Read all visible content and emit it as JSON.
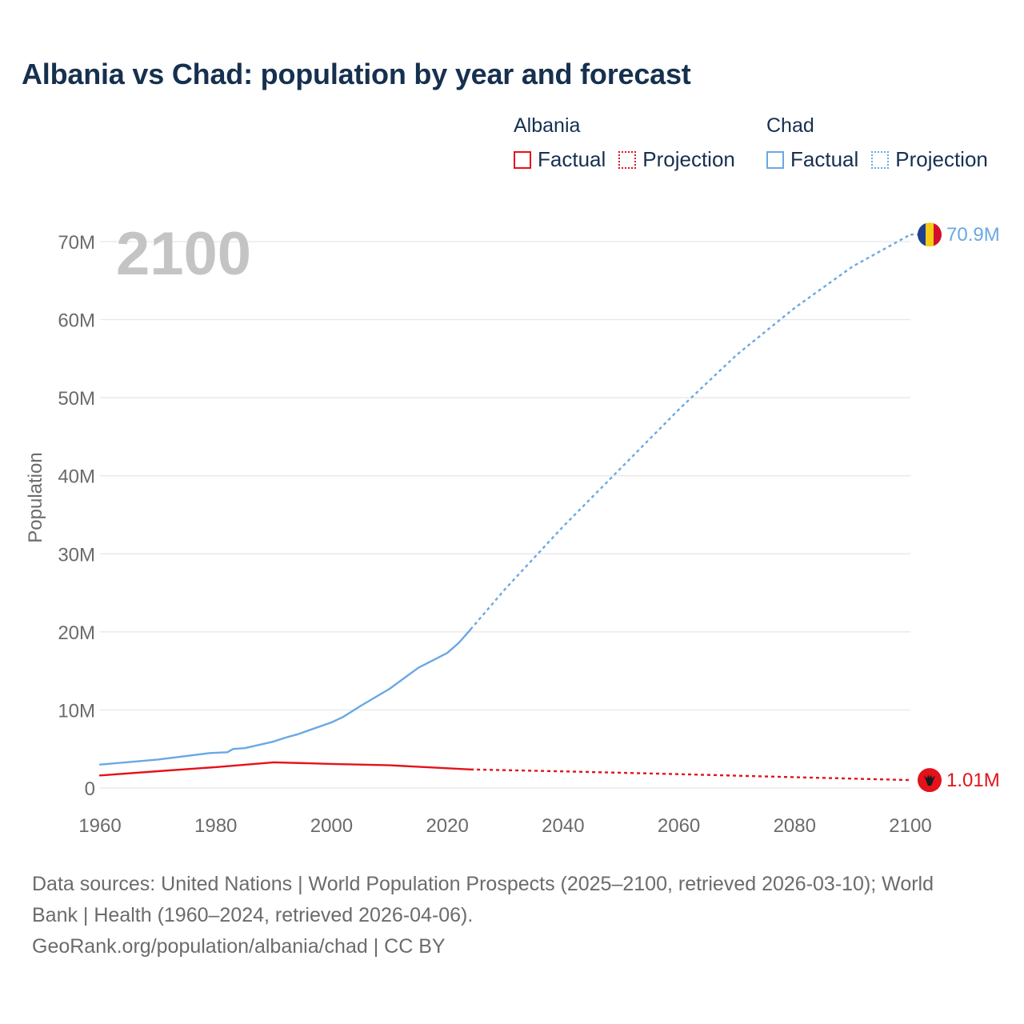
{
  "title": "Albania vs Chad: population by year and forecast",
  "legend": {
    "groups": [
      {
        "name": "Albania",
        "color": "#e3121b",
        "factual": "Factual",
        "projection": "Projection"
      },
      {
        "name": "Chad",
        "color": "#6aa8e3",
        "factual": "Factual",
        "projection": "Projection"
      }
    ]
  },
  "year_overlay": "2100",
  "end_labels": {
    "albania": "1.01M",
    "chad": "70.9M"
  },
  "flag_icons": {
    "albania": "albania-flag-icon",
    "chad": "chad-flag-icon"
  },
  "footer": {
    "line1": "Data sources: United Nations | World Population Prospects (2025–2100, retrieved 2026-03-10); World",
    "line2": "Bank | Health (1960–2024, retrieved 2026-04-06).",
    "line3": "GeoRank.org/population/albania/chad | CC BY"
  },
  "chart_data": {
    "type": "line",
    "title": "Albania vs Chad: population by year and forecast",
    "xlabel": "",
    "ylabel": "Population",
    "xlim": [
      1960,
      2100
    ],
    "ylim": [
      0,
      70000000
    ],
    "x_ticks": [
      1960,
      1980,
      2000,
      2020,
      2040,
      2060,
      2080,
      2100
    ],
    "x_tick_labels": [
      "1960",
      "1980",
      "2000",
      "2020",
      "2040",
      "2060",
      "2080",
      "2100"
    ],
    "y_ticks": [
      0,
      10000000,
      20000000,
      30000000,
      40000000,
      50000000,
      60000000,
      70000000
    ],
    "y_tick_labels": [
      "0",
      "10M",
      "20M",
      "30M",
      "40M",
      "50M",
      "60M",
      "70M"
    ],
    "grid": true,
    "series": [
      {
        "name": "Albania",
        "segment": "Factual",
        "color": "#e3121b",
        "style": "solid",
        "x": [
          1960,
          1970,
          1980,
          1990,
          2000,
          2010,
          2024
        ],
        "values": [
          1610000,
          2150000,
          2670000,
          3290000,
          3090000,
          2910000,
          2380000
        ]
      },
      {
        "name": "Albania",
        "segment": "Projection",
        "color": "#e3121b",
        "style": "dotted",
        "x": [
          2024,
          2040,
          2060,
          2080,
          2100
        ],
        "values": [
          2380000,
          2130000,
          1770000,
          1380000,
          1010000
        ]
      },
      {
        "name": "Chad",
        "segment": "Factual",
        "color": "#6aa8e3",
        "style": "solid",
        "x": [
          1960,
          1970,
          1979,
          1982,
          1983,
          1985,
          1990,
          1992,
          1994,
          2000,
          2002,
          2005,
          2010,
          2015,
          2020,
          2022,
          2024
        ],
        "values": [
          3000000,
          3650000,
          4480000,
          4580000,
          5000000,
          5100000,
          5950000,
          6450000,
          6850000,
          8400000,
          9100000,
          10500000,
          12700000,
          15400000,
          17300000,
          18600000,
          20300000
        ]
      },
      {
        "name": "Chad",
        "segment": "Projection",
        "color": "#6aa8e3",
        "style": "dotted",
        "x": [
          2024,
          2030,
          2040,
          2050,
          2060,
          2070,
          2080,
          2090,
          2100
        ],
        "values": [
          20300000,
          25500000,
          33500000,
          41000000,
          48500000,
          55500000,
          61500000,
          66800000,
          70900000
        ]
      }
    ]
  }
}
